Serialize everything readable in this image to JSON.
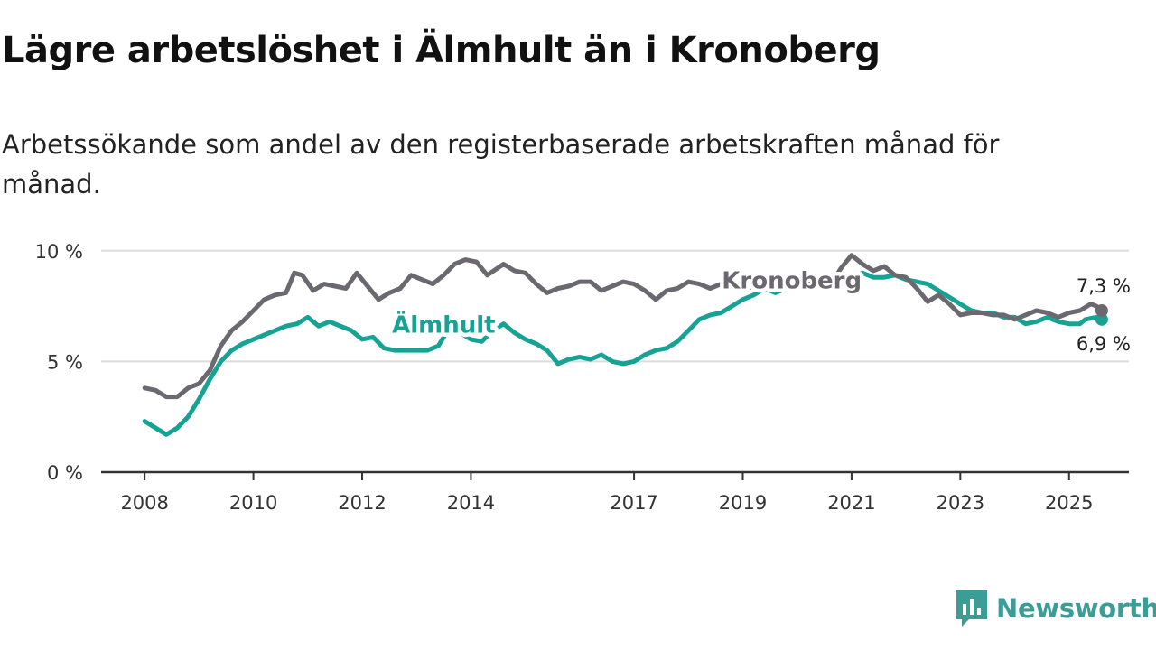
{
  "title": "Lägre arbetslöshet i Älmhult än i Kronoberg",
  "subtitle": "Arbetssökande som andel av den registerbaserade arbetskraften månad för månad.",
  "brand": {
    "name": "Newsworthy",
    "color": "#3c9c96",
    "icon": "newsworthy-logo-icon"
  },
  "chart_data": {
    "type": "line",
    "x_ticks": [
      2008,
      2010,
      2012,
      2014,
      2017,
      2019,
      2021,
      2023,
      2025
    ],
    "x_range": [
      2007.2,
      2026.1
    ],
    "y_ticks": [
      {
        "value": 0,
        "label": "0 %"
      },
      {
        "value": 5,
        "label": "5 %"
      },
      {
        "value": 10,
        "label": "10 %"
      }
    ],
    "ylim": [
      0,
      10.4
    ],
    "grid": true,
    "series": [
      {
        "name": "Kronoberg",
        "color": "#6b6870",
        "end_label": "7,3 %",
        "label_position": [
          2019.9,
          8.3
        ],
        "points": [
          [
            2008.0,
            3.8
          ],
          [
            2008.2,
            3.7
          ],
          [
            2008.4,
            3.4
          ],
          [
            2008.6,
            3.4
          ],
          [
            2008.8,
            3.8
          ],
          [
            2009.0,
            4.0
          ],
          [
            2009.2,
            4.6
          ],
          [
            2009.4,
            5.7
          ],
          [
            2009.6,
            6.4
          ],
          [
            2009.8,
            6.8
          ],
          [
            2010.0,
            7.3
          ],
          [
            2010.2,
            7.8
          ],
          [
            2010.4,
            8.0
          ],
          [
            2010.6,
            8.1
          ],
          [
            2010.75,
            9.0
          ],
          [
            2010.9,
            8.9
          ],
          [
            2011.1,
            8.2
          ],
          [
            2011.3,
            8.5
          ],
          [
            2011.5,
            8.4
          ],
          [
            2011.7,
            8.3
          ],
          [
            2011.9,
            9.0
          ],
          [
            2012.1,
            8.4
          ],
          [
            2012.3,
            7.8
          ],
          [
            2012.5,
            8.1
          ],
          [
            2012.7,
            8.3
          ],
          [
            2012.9,
            8.9
          ],
          [
            2013.1,
            8.7
          ],
          [
            2013.3,
            8.5
          ],
          [
            2013.5,
            8.9
          ],
          [
            2013.7,
            9.4
          ],
          [
            2013.9,
            9.6
          ],
          [
            2014.1,
            9.5
          ],
          [
            2014.3,
            8.9
          ],
          [
            2014.6,
            9.4
          ],
          [
            2014.8,
            9.1
          ],
          [
            2015.0,
            9.0
          ],
          [
            2015.2,
            8.5
          ],
          [
            2015.4,
            8.1
          ],
          [
            2015.6,
            8.3
          ],
          [
            2015.8,
            8.4
          ],
          [
            2016.0,
            8.6
          ],
          [
            2016.2,
            8.6
          ],
          [
            2016.4,
            8.2
          ],
          [
            2016.6,
            8.4
          ],
          [
            2016.8,
            8.6
          ],
          [
            2017.0,
            8.5
          ],
          [
            2017.2,
            8.2
          ],
          [
            2017.4,
            7.8
          ],
          [
            2017.6,
            8.2
          ],
          [
            2017.8,
            8.3
          ],
          [
            2018.0,
            8.6
          ],
          [
            2018.2,
            8.5
          ],
          [
            2018.4,
            8.3
          ],
          [
            2018.6,
            8.5
          ],
          [
            2018.8,
            8.6
          ],
          [
            2019.0,
            8.4
          ],
          [
            2019.3,
            8.3
          ],
          [
            2019.6,
            8.3
          ],
          [
            2019.9,
            8.4
          ],
          [
            2020.2,
            8.5
          ],
          [
            2020.4,
            8.6
          ],
          [
            2020.6,
            8.4
          ],
          [
            2020.8,
            9.2
          ],
          [
            2021.0,
            9.8
          ],
          [
            2021.2,
            9.4
          ],
          [
            2021.4,
            9.1
          ],
          [
            2021.6,
            9.3
          ],
          [
            2021.8,
            8.9
          ],
          [
            2022.0,
            8.8
          ],
          [
            2022.2,
            8.3
          ],
          [
            2022.4,
            7.7
          ],
          [
            2022.6,
            8.0
          ],
          [
            2022.8,
            7.6
          ],
          [
            2023.0,
            7.1
          ],
          [
            2023.2,
            7.2
          ],
          [
            2023.4,
            7.2
          ],
          [
            2023.6,
            7.1
          ],
          [
            2023.8,
            7.1
          ],
          [
            2024.0,
            6.9
          ],
          [
            2024.2,
            7.1
          ],
          [
            2024.4,
            7.3
          ],
          [
            2024.6,
            7.2
          ],
          [
            2024.8,
            7.0
          ],
          [
            2025.0,
            7.2
          ],
          [
            2025.2,
            7.3
          ],
          [
            2025.4,
            7.6
          ],
          [
            2025.5,
            7.5
          ],
          [
            2025.6,
            7.3
          ]
        ]
      },
      {
        "name": "Älmhult",
        "color": "#16a394",
        "end_label": "6,9 %",
        "label_position": [
          2013.5,
          6.3
        ],
        "points": [
          [
            2008.0,
            2.3
          ],
          [
            2008.2,
            2.0
          ],
          [
            2008.4,
            1.7
          ],
          [
            2008.6,
            2.0
          ],
          [
            2008.8,
            2.5
          ],
          [
            2009.0,
            3.3
          ],
          [
            2009.2,
            4.2
          ],
          [
            2009.4,
            5.0
          ],
          [
            2009.6,
            5.5
          ],
          [
            2009.8,
            5.8
          ],
          [
            2010.0,
            6.0
          ],
          [
            2010.2,
            6.2
          ],
          [
            2010.4,
            6.4
          ],
          [
            2010.6,
            6.6
          ],
          [
            2010.8,
            6.7
          ],
          [
            2011.0,
            7.0
          ],
          [
            2011.2,
            6.6
          ],
          [
            2011.4,
            6.8
          ],
          [
            2011.6,
            6.6
          ],
          [
            2011.8,
            6.4
          ],
          [
            2012.0,
            6.0
          ],
          [
            2012.2,
            6.1
          ],
          [
            2012.4,
            5.6
          ],
          [
            2012.6,
            5.5
          ],
          [
            2012.8,
            5.5
          ],
          [
            2013.0,
            5.5
          ],
          [
            2013.2,
            5.5
          ],
          [
            2013.4,
            5.7
          ],
          [
            2013.6,
            6.5
          ],
          [
            2013.8,
            6.3
          ],
          [
            2014.0,
            6.0
          ],
          [
            2014.2,
            5.9
          ],
          [
            2014.4,
            6.4
          ],
          [
            2014.6,
            6.7
          ],
          [
            2014.8,
            6.3
          ],
          [
            2015.0,
            6.0
          ],
          [
            2015.2,
            5.8
          ],
          [
            2015.4,
            5.5
          ],
          [
            2015.6,
            4.9
          ],
          [
            2015.8,
            5.1
          ],
          [
            2016.0,
            5.2
          ],
          [
            2016.2,
            5.1
          ],
          [
            2016.4,
            5.3
          ],
          [
            2016.6,
            5.0
          ],
          [
            2016.8,
            4.9
          ],
          [
            2017.0,
            5.0
          ],
          [
            2017.2,
            5.3
          ],
          [
            2017.4,
            5.5
          ],
          [
            2017.6,
            5.6
          ],
          [
            2017.8,
            5.9
          ],
          [
            2018.0,
            6.4
          ],
          [
            2018.2,
            6.9
          ],
          [
            2018.4,
            7.1
          ],
          [
            2018.6,
            7.2
          ],
          [
            2018.8,
            7.5
          ],
          [
            2019.0,
            7.8
          ],
          [
            2019.2,
            8.0
          ],
          [
            2019.4,
            8.3
          ],
          [
            2019.6,
            8.1
          ],
          [
            2019.8,
            8.3
          ],
          [
            2020.0,
            8.4
          ],
          [
            2020.2,
            8.5
          ],
          [
            2020.4,
            8.6
          ],
          [
            2020.6,
            8.7
          ],
          [
            2020.8,
            8.6
          ],
          [
            2021.0,
            8.8
          ],
          [
            2021.2,
            9.0
          ],
          [
            2021.4,
            8.8
          ],
          [
            2021.6,
            8.8
          ],
          [
            2021.8,
            8.9
          ],
          [
            2022.0,
            8.7
          ],
          [
            2022.2,
            8.6
          ],
          [
            2022.4,
            8.5
          ],
          [
            2022.6,
            8.2
          ],
          [
            2022.8,
            7.9
          ],
          [
            2023.0,
            7.6
          ],
          [
            2023.2,
            7.3
          ],
          [
            2023.4,
            7.2
          ],
          [
            2023.6,
            7.2
          ],
          [
            2023.8,
            7.0
          ],
          [
            2024.0,
            7.0
          ],
          [
            2024.2,
            6.7
          ],
          [
            2024.4,
            6.8
          ],
          [
            2024.6,
            7.0
          ],
          [
            2024.8,
            6.8
          ],
          [
            2025.0,
            6.7
          ],
          [
            2025.2,
            6.7
          ],
          [
            2025.3,
            6.9
          ],
          [
            2025.5,
            7.0
          ],
          [
            2025.6,
            6.9
          ]
        ]
      }
    ]
  }
}
